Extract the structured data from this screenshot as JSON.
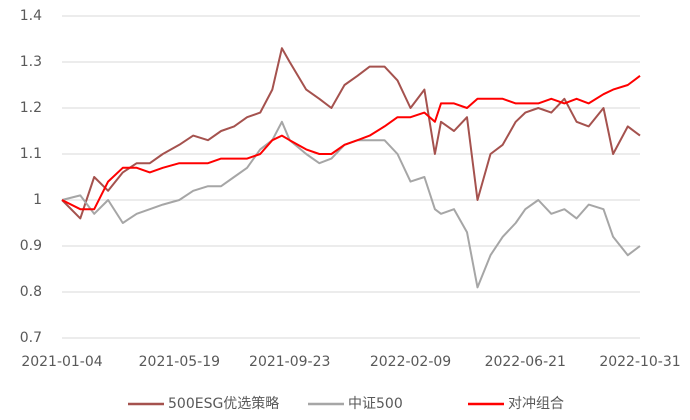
{
  "chart_data": {
    "type": "line",
    "x": [
      "2021-01-04",
      "2021-01-25",
      "2021-02-10",
      "2021-02-26",
      "2021-03-15",
      "2021-03-31",
      "2021-04-15",
      "2021-04-30",
      "2021-05-19",
      "2021-06-04",
      "2021-06-21",
      "2021-07-06",
      "2021-07-21",
      "2021-08-05",
      "2021-08-20",
      "2021-09-03",
      "2021-09-14",
      "2021-09-23",
      "2021-10-12",
      "2021-10-27",
      "2021-11-10",
      "2021-11-25",
      "2021-12-10",
      "2021-12-24",
      "2022-01-10",
      "2022-01-25",
      "2022-02-09",
      "2022-02-25",
      "2022-03-09",
      "2022-03-16",
      "2022-03-31",
      "2022-04-15",
      "2022-04-27",
      "2022-05-12",
      "2022-05-26",
      "2022-06-10",
      "2022-06-21",
      "2022-07-06",
      "2022-07-21",
      "2022-08-05",
      "2022-08-19",
      "2022-09-02",
      "2022-09-19",
      "2022-09-30",
      "2022-10-17",
      "2022-10-31"
    ],
    "series": [
      {
        "name": "500ESG优选策略",
        "color": "#a5524e",
        "values": [
          1.0,
          0.96,
          1.05,
          1.02,
          1.06,
          1.08,
          1.08,
          1.1,
          1.12,
          1.14,
          1.13,
          1.15,
          1.16,
          1.18,
          1.19,
          1.24,
          1.33,
          1.3,
          1.24,
          1.22,
          1.2,
          1.25,
          1.27,
          1.29,
          1.29,
          1.26,
          1.2,
          1.24,
          1.1,
          1.17,
          1.15,
          1.18,
          1.0,
          1.1,
          1.12,
          1.17,
          1.19,
          1.2,
          1.19,
          1.22,
          1.17,
          1.16,
          1.2,
          1.1,
          1.16,
          1.14
        ]
      },
      {
        "name": "中证500",
        "color": "#a6a6a6",
        "values": [
          1.0,
          1.01,
          0.97,
          1.0,
          0.95,
          0.97,
          0.98,
          0.99,
          1.0,
          1.02,
          1.03,
          1.03,
          1.05,
          1.07,
          1.11,
          1.13,
          1.17,
          1.13,
          1.1,
          1.08,
          1.09,
          1.12,
          1.13,
          1.13,
          1.13,
          1.1,
          1.04,
          1.05,
          0.98,
          0.97,
          0.98,
          0.93,
          0.81,
          0.88,
          0.92,
          0.95,
          0.98,
          1.0,
          0.97,
          0.98,
          0.96,
          0.99,
          0.98,
          0.92,
          0.88,
          0.9
        ]
      },
      {
        "name": "对冲组合",
        "color": "#ff0000",
        "values": [
          1.0,
          0.98,
          0.98,
          1.04,
          1.07,
          1.07,
          1.06,
          1.07,
          1.08,
          1.08,
          1.08,
          1.09,
          1.09,
          1.09,
          1.1,
          1.13,
          1.14,
          1.13,
          1.11,
          1.1,
          1.1,
          1.12,
          1.13,
          1.14,
          1.16,
          1.18,
          1.18,
          1.19,
          1.17,
          1.21,
          1.21,
          1.2,
          1.22,
          1.22,
          1.22,
          1.21,
          1.21,
          1.21,
          1.22,
          1.21,
          1.22,
          1.21,
          1.23,
          1.24,
          1.25,
          1.27
        ]
      }
    ],
    "xlim": [
      "2021-01-04",
      "2022-10-31"
    ],
    "xticks": [
      "2021-01-04",
      "2021-05-19",
      "2021-09-23",
      "2022-02-09",
      "2022-06-21",
      "2022-10-31"
    ],
    "ylim": [
      0.7,
      1.4
    ],
    "yticks": [
      0.7,
      0.8,
      0.9,
      1,
      1.1,
      1.2,
      1.3,
      1.4
    ],
    "grid": true,
    "legend": "bottom"
  }
}
